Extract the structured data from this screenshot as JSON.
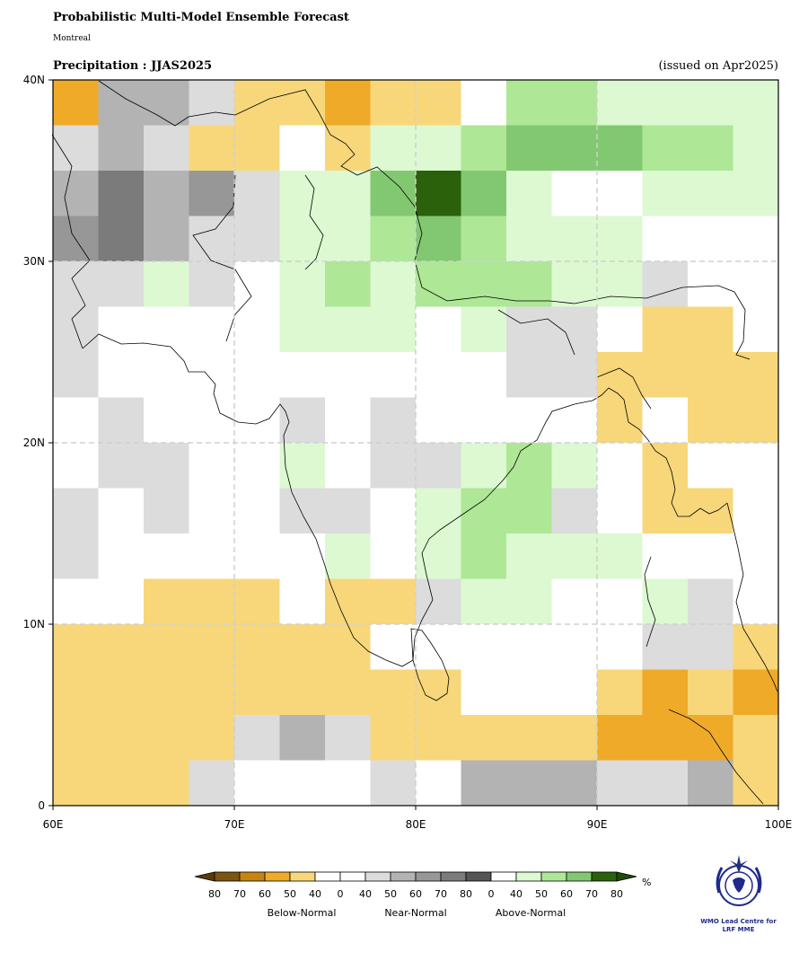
{
  "header": {
    "title": "Probabilistic Multi-Model Ensemble Forecast",
    "subtitle": "Montreal",
    "variable_label": "Precipitation : JJAS2025",
    "issued": "(issued on Apr2025)"
  },
  "map": {
    "lon_range": [
      60,
      100
    ],
    "lat_range": [
      0,
      40
    ],
    "cell_deg": 2.5,
    "x_ticks": [
      "60E",
      "70E",
      "80E",
      "90E",
      "100E"
    ],
    "y_ticks": [
      "40N",
      "30N",
      "20N",
      "10N",
      "0"
    ],
    "gridlines": true,
    "palette": {
      "B80": "#7d5410",
      "B70": "#c88410",
      "B60": "#efaa28",
      "B50": "#f8d77a",
      "B40": "#ffffff",
      "N40": "#dcdcdc",
      "N50": "#b3b3b3",
      "N60": "#979797",
      "N70": "#7b7b7b",
      "N80": "#555555",
      "A40": "#dcf9d2",
      "A50": "#aee796",
      "A60": "#82c870",
      "A70": "#2a610a",
      "A80": "#2a610a",
      "W": "#ffffff"
    },
    "grid_rows_north_to_south": [
      "B60 N50 N50 N40 B50 B50 B60 B50 B50 W A50 A50 A40 A40 A40 A40",
      "N40 N50 N40 B50 B50 W B50 A40 A40 A50 A60 A60 A60 A50 A50 A40",
      "N50 N70 N50 N60 N40 A40 A40 A60 A70 A60 A40 W W A40 A40 A40",
      "N60 N70 N50 N40 N40 A40 A40 A50 A60 A50 A40 A40 A40 W W W",
      "N40 N40 A40 N40 W A40 A50 A40 A50 A50 A50 A40 A40 N40 W W",
      "N40 W W W W A40 A40 A40 W A40 N40 N40 W B50 B50 W",
      "N40 W W W W W W W W W N40 N40 B50 B50 B50 B50",
      "W N40 W W W N40 W N40 W W W W B50 W B50 B50",
      "W N40 N40 W W A40 W N40 N40 A40 A50 A40 W B50 W W",
      "N40 W N40 W W N40 N40 W A40 A50 A50 N40 W B50 B50 W",
      "N40 W W W W W A40 W A40 A50 A40 A40 A40 W W W",
      "W W B50 B50 B50 W B50 B50 N40 A40 A40 W W A40 N40 W",
      "B50 B50 B50 B50 B50 B50 B50 W W W W W W N40 N40 B50",
      "B50 B50 B50 B50 B50 B50 B50 B50 B50 W W W B50 B60 B50 B60",
      "B50 B50 B50 B50 N40 N50 N40 B50 B50 B50 B50 B50 B60 B60 B60 B50",
      "B50 B50 B50 N40 W W W N40 W N50 N50 N50 N40 N40 N50 B50"
    ]
  },
  "colorbar": {
    "unit": "%",
    "numbers": [
      "80",
      "70",
      "60",
      "50",
      "40",
      "0",
      "40",
      "50",
      "60",
      "70",
      "80",
      "0",
      "40",
      "50",
      "60",
      "70",
      "80"
    ],
    "colors": [
      "#7d5410",
      "#c88410",
      "#efaa28",
      "#f8d77a",
      "#ffffff",
      "#ffffff",
      "#dcdcdc",
      "#b3b3b3",
      "#979797",
      "#7b7b7b",
      "#555555",
      "#ffffff",
      "#dcf9d2",
      "#aee796",
      "#82c870",
      "#2a610a"
    ],
    "low_extend_color": "#5a3a08",
    "high_extend_color": "#1f4a08",
    "categories": [
      "Below-Normal",
      "Near-Normal",
      "Above-Normal"
    ]
  },
  "logo": {
    "icon": "wmo-emblem-icon",
    "line1": "WMO Lead Centre for",
    "line2": "LRF MME",
    "color": "#1f2a8a"
  }
}
